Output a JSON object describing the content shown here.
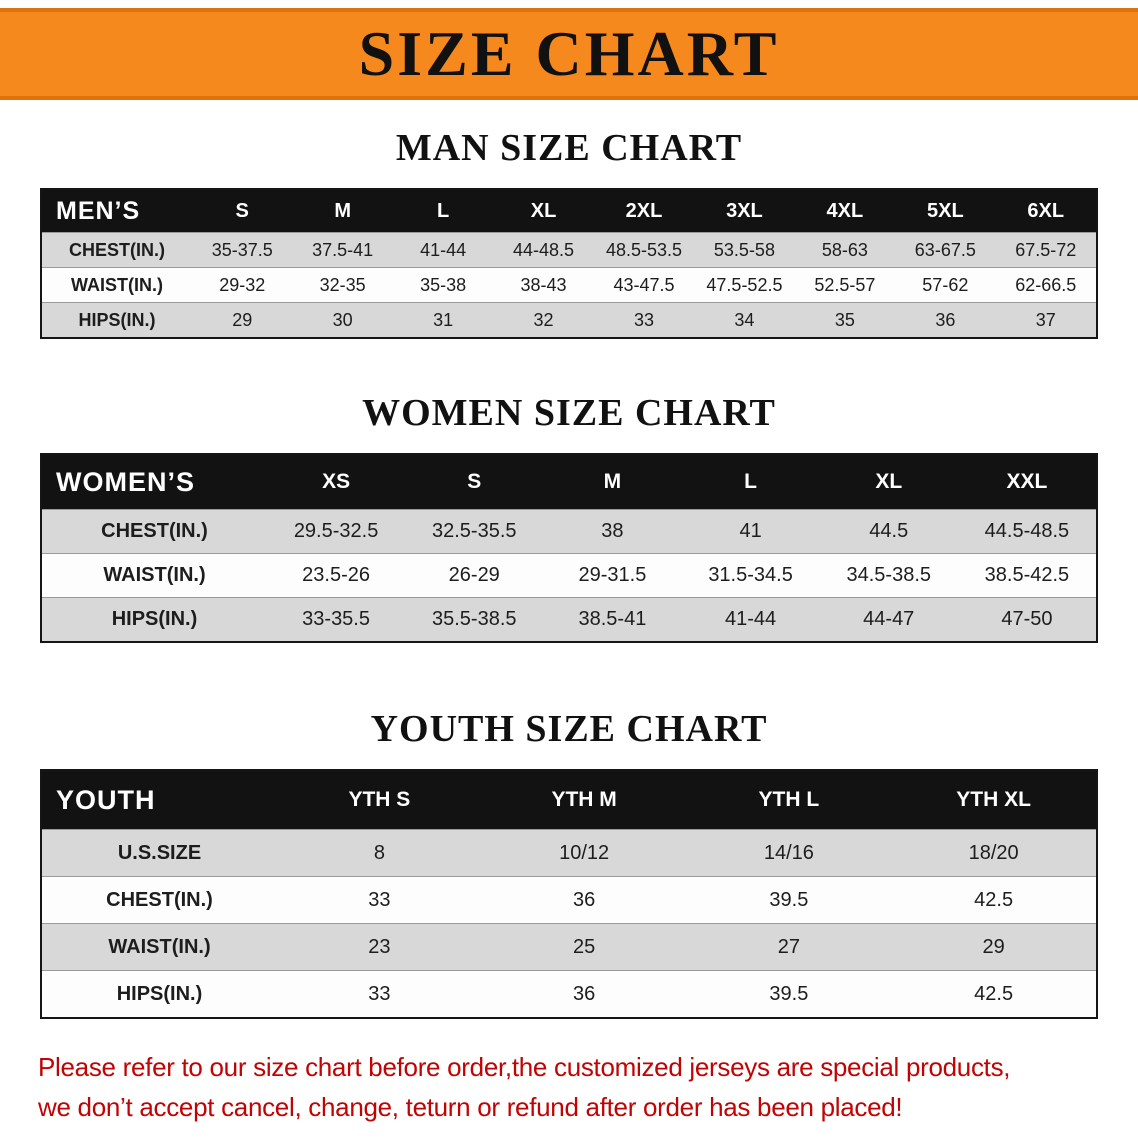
{
  "banner": {
    "title": "SIZE CHART"
  },
  "colors": {
    "banner-bg": "#f6891e",
    "header-band": "#121212",
    "stripe": "#d8d8d8",
    "footer-red": "#c10303"
  },
  "chart_data": [
    {
      "type": "table",
      "title": "MAN SIZE CHART",
      "corner_label": "MEN’S",
      "columns": [
        "S",
        "M",
        "L",
        "XL",
        "2XL",
        "3XL",
        "4XL",
        "5XL",
        "6XL"
      ],
      "rows": [
        {
          "label": "CHEST(IN.)",
          "values": [
            "35-37.5",
            "37.5-41",
            "41-44",
            "44-48.5",
            "48.5-53.5",
            "53.5-58",
            "58-63",
            "63-67.5",
            "67.5-72"
          ]
        },
        {
          "label": "WAIST(IN.)",
          "values": [
            "29-32",
            "32-35",
            "35-38",
            "38-43",
            "43-47.5",
            "47.5-52.5",
            "52.5-57",
            "57-62",
            "62-66.5"
          ]
        },
        {
          "label": "HIPS(IN.)",
          "values": [
            "29",
            "30",
            "31",
            "32",
            "33",
            "34",
            "35",
            "36",
            "37"
          ]
        }
      ]
    },
    {
      "type": "table",
      "title": "WOMEN SIZE CHART",
      "corner_label": "WOMEN’S",
      "columns": [
        "XS",
        "S",
        "M",
        "L",
        "XL",
        "XXL"
      ],
      "rows": [
        {
          "label": "CHEST(IN.)",
          "values": [
            "29.5-32.5",
            "32.5-35.5",
            "38",
            "41",
            "44.5",
            "44.5-48.5"
          ]
        },
        {
          "label": "WAIST(IN.)",
          "values": [
            "23.5-26",
            "26-29",
            "29-31.5",
            "31.5-34.5",
            "34.5-38.5",
            "38.5-42.5"
          ]
        },
        {
          "label": "HIPS(IN.)",
          "values": [
            "33-35.5",
            "35.5-38.5",
            "38.5-41",
            "41-44",
            "44-47",
            "47-50"
          ]
        }
      ]
    },
    {
      "type": "table",
      "title": "YOUTH SIZE CHART",
      "corner_label": "YOUTH",
      "columns": [
        "YTH S",
        "YTH M",
        "YTH L",
        "YTH XL"
      ],
      "rows": [
        {
          "label": "U.S.SIZE",
          "values": [
            "8",
            "10/12",
            "14/16",
            "18/20"
          ]
        },
        {
          "label": "CHEST(IN.)",
          "values": [
            "33",
            "36",
            "39.5",
            "42.5"
          ]
        },
        {
          "label": "WAIST(IN.)",
          "values": [
            "23",
            "25",
            "27",
            "29"
          ]
        },
        {
          "label": "HIPS(IN.)",
          "values": [
            "33",
            "36",
            "39.5",
            "42.5"
          ]
        }
      ]
    }
  ],
  "footer": {
    "line1": "Please refer to our size chart before order,the customized jerseys are special products,",
    "line2": "we don’t accept cancel, change, teturn or refund after order has been placed!"
  }
}
